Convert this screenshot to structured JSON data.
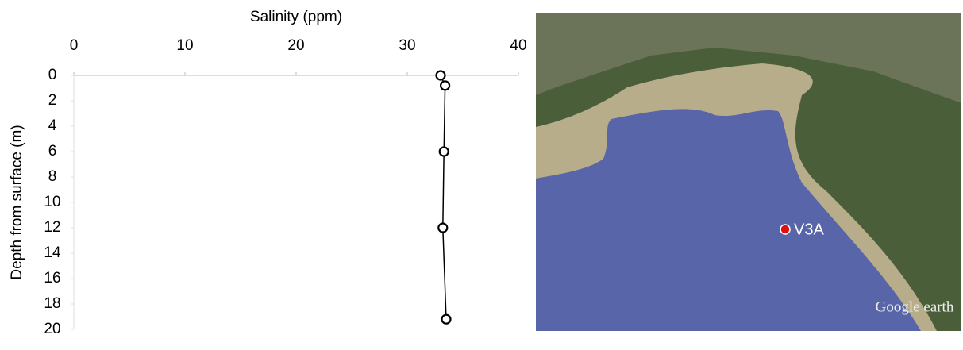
{
  "chart_data": {
    "type": "scatter",
    "x_label": "Salinity (ppm)",
    "y_label": "Depth from surface (m)",
    "x": [
      33,
      33.4,
      33.3,
      33.2,
      33.5
    ],
    "values": [
      0,
      0.8,
      6,
      12,
      19.2
    ],
    "xlim": [
      0,
      40
    ],
    "xticks": [
      0,
      10,
      20,
      30,
      40
    ],
    "ylim": [
      0,
      20
    ],
    "yticks": [
      0,
      2,
      4,
      6,
      8,
      10,
      12,
      14,
      16,
      18,
      20
    ],
    "y_inverted": true,
    "x_axis_position": "top",
    "color": "#000000",
    "connect_points": true
  },
  "map": {
    "marker_label": "V3A",
    "marker_color": "#e01010",
    "watermark": "Google earth"
  }
}
